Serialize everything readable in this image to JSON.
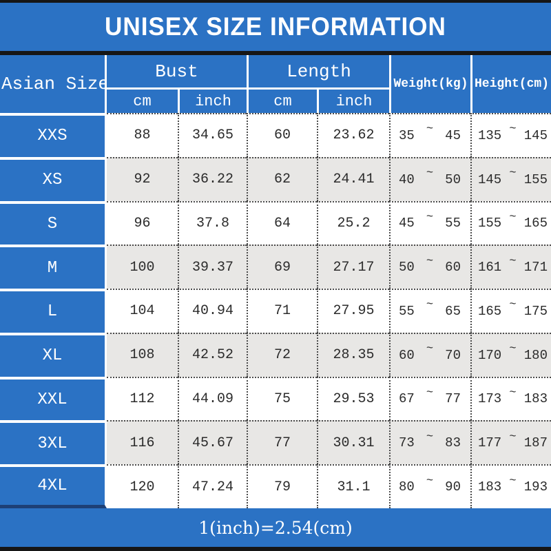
{
  "title": "UNISEX SIZE INFORMATION",
  "footer_note": "1(inch)=2.54(cm)",
  "colors": {
    "accent_blue": "#2b72c4",
    "line_black": "#161616",
    "alt_row_gray": "#e8e7e5",
    "header_text": "#ffffff",
    "cell_text": "#2b2b2b"
  },
  "table": {
    "corner_header": "Asian Size",
    "group_headers": {
      "bust": "Bust",
      "length": "Length",
      "weight": "Weight(kg)",
      "height": "Height(cm)"
    },
    "sub_headers": {
      "bust_cm": "cm",
      "bust_inch": "inch",
      "length_cm": "cm",
      "length_inch": "inch"
    },
    "range_separator": "~",
    "rows": [
      {
        "size": "XXS",
        "bust_cm": "88",
        "bust_inch": "34.65",
        "length_cm": "60",
        "length_inch": "23.62",
        "weight_min": "35",
        "weight_max": "45",
        "height_min": "135",
        "height_max": "145"
      },
      {
        "size": "XS",
        "bust_cm": "92",
        "bust_inch": "36.22",
        "length_cm": "62",
        "length_inch": "24.41",
        "weight_min": "40",
        "weight_max": "50",
        "height_min": "145",
        "height_max": "155"
      },
      {
        "size": "S",
        "bust_cm": "96",
        "bust_inch": "37.8",
        "length_cm": "64",
        "length_inch": "25.2",
        "weight_min": "45",
        "weight_max": "55",
        "height_min": "155",
        "height_max": "165"
      },
      {
        "size": "M",
        "bust_cm": "100",
        "bust_inch": "39.37",
        "length_cm": "69",
        "length_inch": "27.17",
        "weight_min": "50",
        "weight_max": "60",
        "height_min": "161",
        "height_max": "171"
      },
      {
        "size": "L",
        "bust_cm": "104",
        "bust_inch": "40.94",
        "length_cm": "71",
        "length_inch": "27.95",
        "weight_min": "55",
        "weight_max": "65",
        "height_min": "165",
        "height_max": "175"
      },
      {
        "size": "XL",
        "bust_cm": "108",
        "bust_inch": "42.52",
        "length_cm": "72",
        "length_inch": "28.35",
        "weight_min": "60",
        "weight_max": "70",
        "height_min": "170",
        "height_max": "180"
      },
      {
        "size": "XXL",
        "bust_cm": "112",
        "bust_inch": "44.09",
        "length_cm": "75",
        "length_inch": "29.53",
        "weight_min": "67",
        "weight_max": "77",
        "height_min": "173",
        "height_max": "183"
      },
      {
        "size": "3XL",
        "bust_cm": "116",
        "bust_inch": "45.67",
        "length_cm": "77",
        "length_inch": "30.31",
        "weight_min": "73",
        "weight_max": "83",
        "height_min": "177",
        "height_max": "187"
      },
      {
        "size": "4XL",
        "bust_cm": "120",
        "bust_inch": "47.24",
        "length_cm": "79",
        "length_inch": "31.1",
        "weight_min": "80",
        "weight_max": "90",
        "height_min": "183",
        "height_max": "193"
      }
    ]
  },
  "chart_data": {
    "type": "table",
    "title": "UNISEX SIZE INFORMATION",
    "columns": [
      "Asian Size",
      "Bust cm",
      "Bust inch",
      "Length cm",
      "Length inch",
      "Weight(kg)",
      "Height(cm)"
    ],
    "rows": [
      [
        "XXS",
        "88",
        "34.65",
        "60",
        "23.62",
        "35~45",
        "135~145"
      ],
      [
        "XS",
        "92",
        "36.22",
        "62",
        "24.41",
        "40~50",
        "145~155"
      ],
      [
        "S",
        "96",
        "37.8",
        "64",
        "25.2",
        "45~55",
        "155~165"
      ],
      [
        "M",
        "100",
        "39.37",
        "69",
        "27.17",
        "50~60",
        "161~171"
      ],
      [
        "L",
        "104",
        "40.94",
        "71",
        "27.95",
        "55~65",
        "165~175"
      ],
      [
        "XL",
        "108",
        "42.52",
        "72",
        "28.35",
        "60~70",
        "170~180"
      ],
      [
        "XXL",
        "112",
        "44.09",
        "75",
        "29.53",
        "67~77",
        "173~183"
      ],
      [
        "3XL",
        "116",
        "45.67",
        "77",
        "30.31",
        "73~83",
        "177~187"
      ],
      [
        "4XL",
        "120",
        "47.24",
        "79",
        "31.1",
        "80~90",
        "183~193"
      ]
    ],
    "note": "1(inch)=2.54(cm)"
  }
}
